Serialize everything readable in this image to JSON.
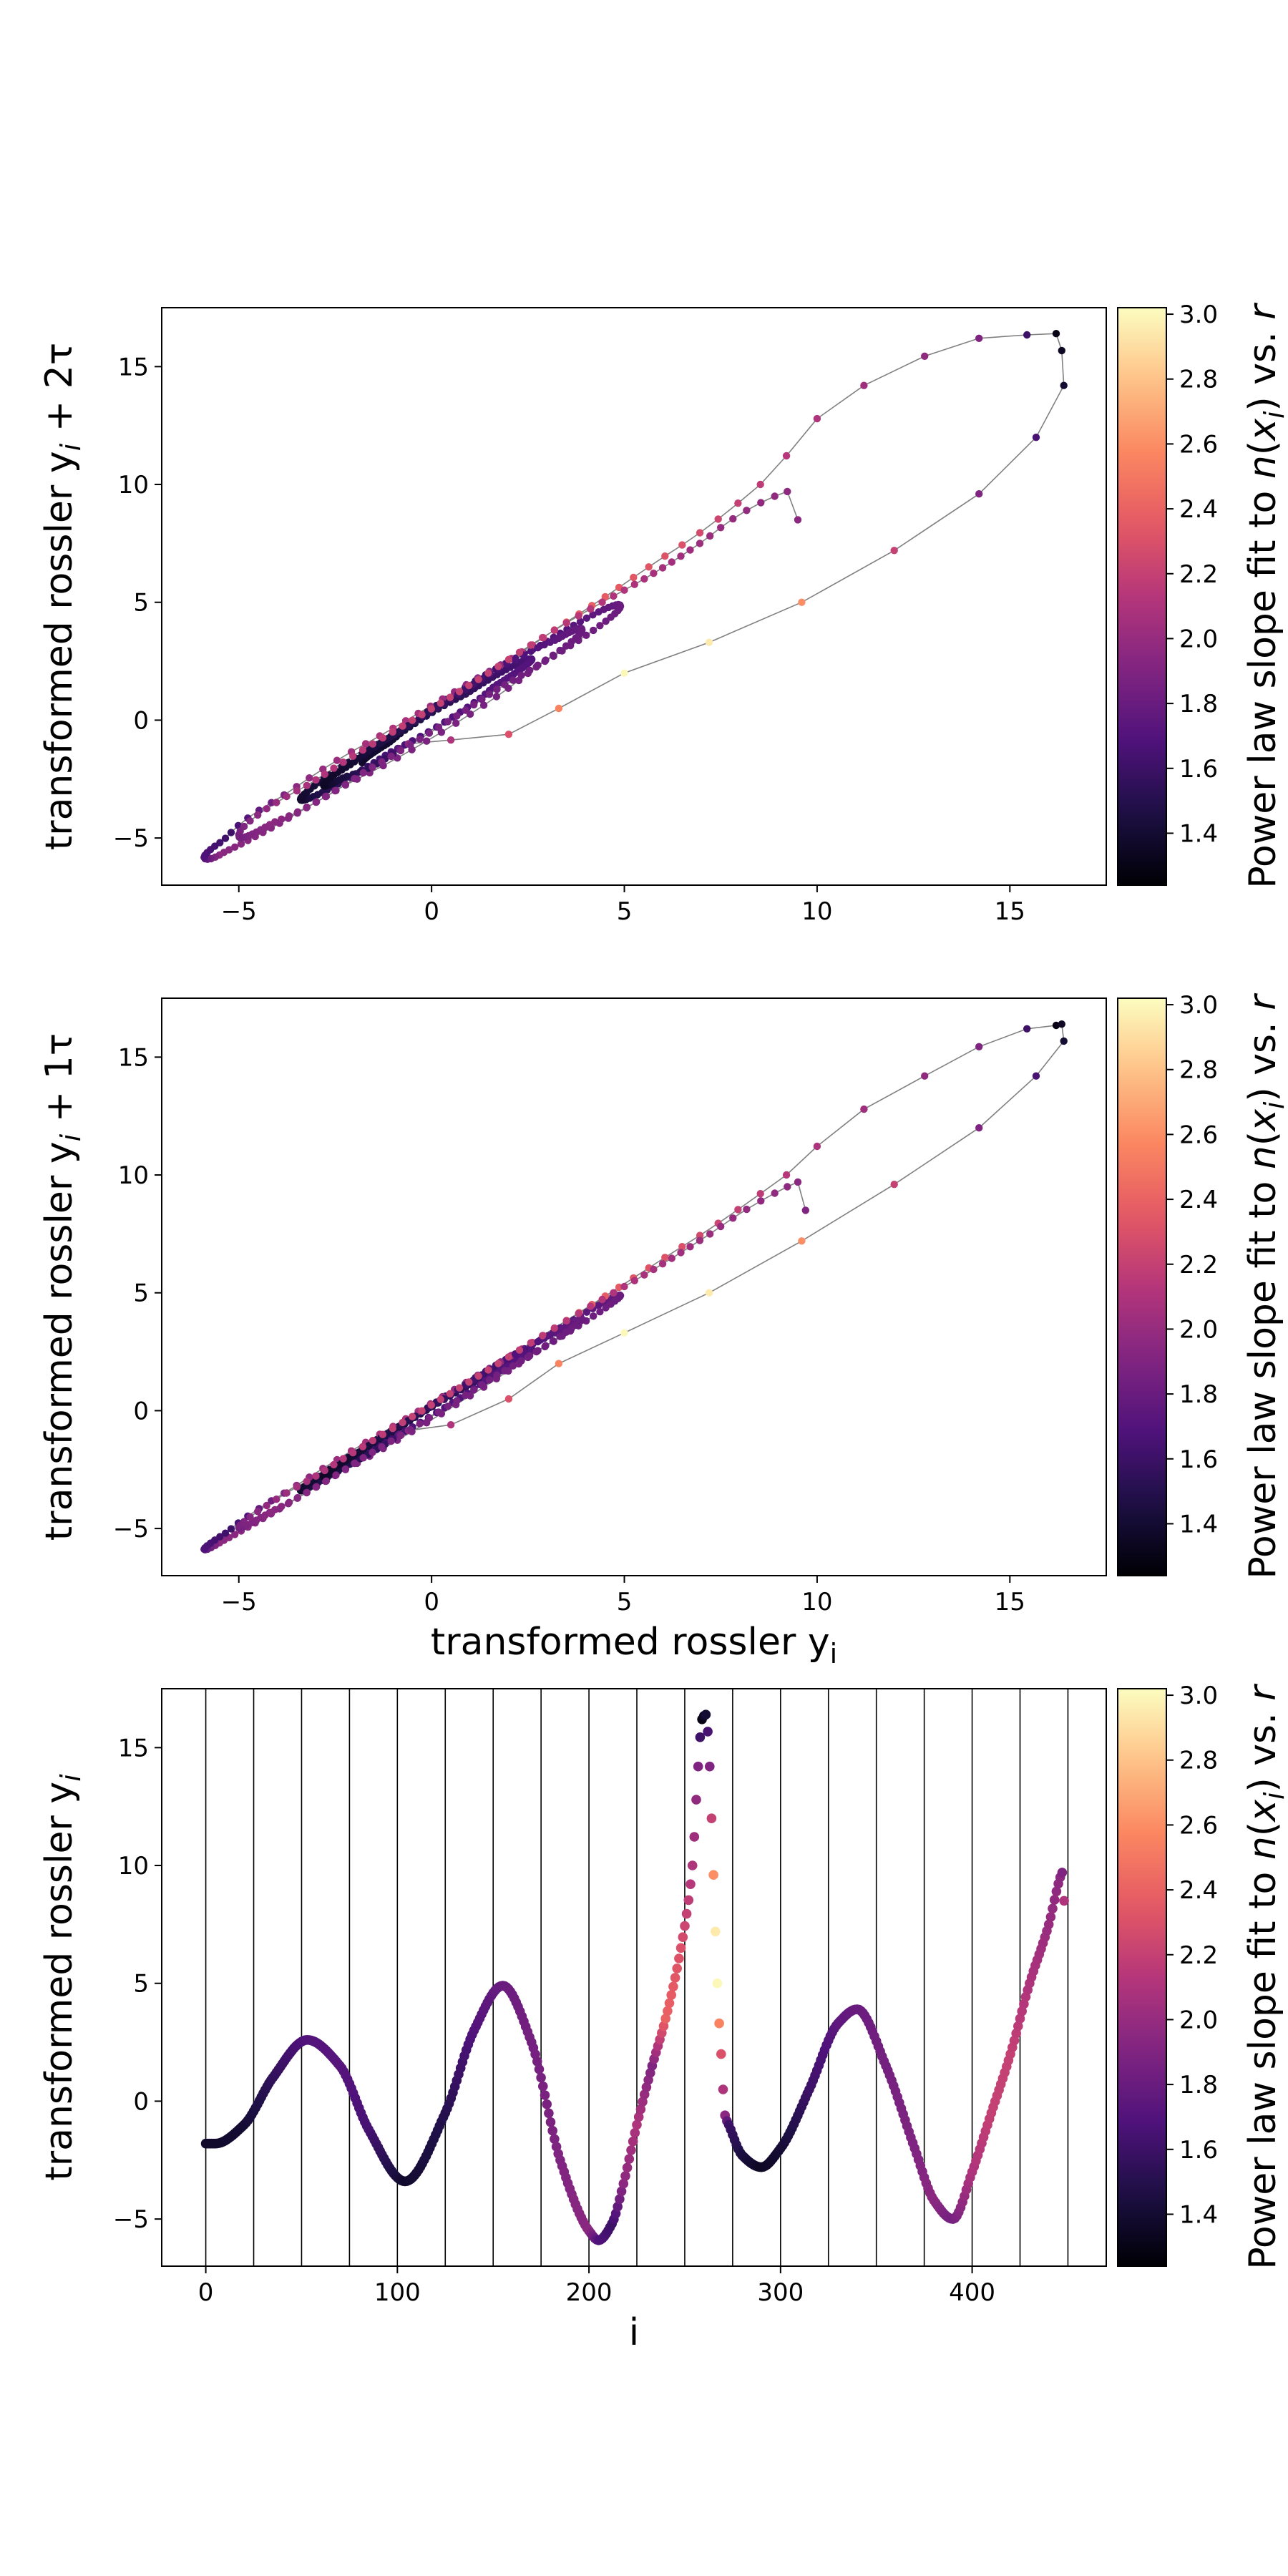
{
  "colormap": "magma",
  "colormap_stops": [
    "#000004",
    "#1c1044",
    "#4f127b",
    "#812581",
    "#b5367a",
    "#e55964",
    "#fb8761",
    "#fec287",
    "#fcfdbf"
  ],
  "trajectory_line_color": "#808080",
  "chart_data": [
    {
      "type": "scatter",
      "id": "delay-2tau",
      "xlabel": "",
      "ylabel_main": "transformed rossler y",
      "ylabel_sub": "i",
      "ylabel_suffix": " + 2τ",
      "xlim": [
        -7.0,
        17.5
      ],
      "ylim": [
        -7.0,
        17.5
      ],
      "xticks": [
        -5,
        0,
        5,
        10,
        15
      ],
      "yticks": [
        -5,
        0,
        5,
        10,
        15
      ],
      "delay": 2,
      "connect_points": true,
      "colorbar": {
        "label": "Power law slope fit to n(x_i) vs. r",
        "range": [
          1.24,
          3.02
        ],
        "ticks": [
          1.4,
          1.6,
          1.8,
          2.0,
          2.2,
          2.4,
          2.6,
          2.8,
          3.0
        ]
      }
    },
    {
      "type": "scatter",
      "id": "delay-1tau",
      "xlabel_main": "transformed rossler y",
      "xlabel_sub": "i",
      "ylabel_main": "transformed rossler y",
      "ylabel_sub": "i",
      "ylabel_suffix": " + 1τ",
      "xlim": [
        -7.0,
        17.5
      ],
      "ylim": [
        -7.0,
        17.5
      ],
      "xticks": [
        -5,
        0,
        5,
        10,
        15
      ],
      "yticks": [
        -5,
        0,
        5,
        10,
        15
      ],
      "delay": 1,
      "connect_points": true,
      "colorbar": {
        "label": "Power law slope fit to n(x_i) vs. r",
        "range": [
          1.24,
          3.02
        ],
        "ticks": [
          1.4,
          1.6,
          1.8,
          2.0,
          2.2,
          2.4,
          2.6,
          2.8,
          3.0
        ]
      }
    },
    {
      "type": "scatter",
      "id": "time-series",
      "xlabel": "i",
      "ylabel_main": "transformed rossler y",
      "ylabel_sub": "i",
      "ylabel_suffix": "",
      "xlim": [
        -23,
        470
      ],
      "ylim": [
        -7.0,
        17.5
      ],
      "xticks": [
        0,
        100,
        200,
        300,
        400
      ],
      "yticks": [
        -5,
        0,
        5,
        10,
        15
      ],
      "vertical_lines_x": [
        0,
        25,
        50,
        75,
        100,
        125,
        150,
        175,
        200,
        225,
        250,
        275,
        300,
        325,
        350,
        375,
        400,
        425,
        450
      ],
      "connect_points": false,
      "colorbar": {
        "label": "Power law slope fit to n(x_i) vs. r",
        "range": [
          1.24,
          3.02
        ],
        "ticks": [
          1.4,
          1.6,
          1.8,
          2.0,
          2.2,
          2.4,
          2.6,
          2.8,
          3.0
        ]
      }
    }
  ],
  "series": {
    "name": "",
    "anchors": [
      [
        0,
        -1.8,
        1.38
      ],
      [
        5,
        -1.8,
        1.38
      ],
      [
        20,
        -1.0,
        1.4
      ],
      [
        35,
        1.0,
        1.55
      ],
      [
        53,
        2.6,
        1.7
      ],
      [
        70,
        1.5,
        1.72
      ],
      [
        85,
        -1.2,
        1.65
      ],
      [
        104,
        -3.4,
        1.38
      ],
      [
        125,
        -0.5,
        1.5
      ],
      [
        140,
        3.0,
        1.7
      ],
      [
        155,
        4.9,
        1.8
      ],
      [
        170,
        2.5,
        1.85
      ],
      [
        185,
        -2.5,
        1.9
      ],
      [
        200,
        -5.5,
        1.95
      ],
      [
        205,
        -5.9,
        1.7
      ],
      [
        212,
        -5.2,
        1.6
      ],
      [
        218,
        -3.5,
        1.95
      ],
      [
        225,
        -1.0,
        2.1
      ],
      [
        233,
        1.5,
        1.9
      ],
      [
        240,
        3.5,
        2.4
      ],
      [
        248,
        6.5,
        2.3
      ],
      [
        254,
        10.0,
        2.1
      ],
      [
        257,
        14.2,
        1.9
      ],
      [
        259,
        16.2,
        1.3
      ],
      [
        261,
        16.4,
        1.4
      ],
      [
        263,
        14.2,
        1.9
      ],
      [
        264,
        12.0,
        2.2
      ],
      [
        265,
        9.6,
        2.6
      ],
      [
        266,
        7.2,
        2.95
      ],
      [
        267,
        5.0,
        3.0
      ],
      [
        268,
        3.3,
        2.55
      ],
      [
        269,
        2.0,
        2.3
      ],
      [
        270,
        0.5,
        2.1
      ],
      [
        271,
        -0.6,
        1.95
      ],
      [
        273,
        -1.0,
        1.6
      ],
      [
        280,
        -2.3,
        1.45
      ],
      [
        290,
        -2.8,
        1.35
      ],
      [
        300,
        -2.0,
        1.4
      ],
      [
        315,
        0.5,
        1.6
      ],
      [
        330,
        3.3,
        1.75
      ],
      [
        340,
        3.9,
        1.8
      ],
      [
        355,
        1.5,
        1.85
      ],
      [
        370,
        -2.0,
        1.9
      ],
      [
        380,
        -4.2,
        1.95
      ],
      [
        390,
        -5.0,
        1.85
      ],
      [
        400,
        -3.0,
        2.1
      ],
      [
        410,
        -0.5,
        2.2
      ],
      [
        420,
        2.0,
        2.2
      ],
      [
        430,
        5.0,
        2.1
      ],
      [
        440,
        7.5,
        2.0
      ],
      [
        446,
        9.5,
        1.95
      ],
      [
        447,
        9.7,
        1.9
      ],
      [
        448,
        8.5,
        2.1
      ]
    ]
  }
}
